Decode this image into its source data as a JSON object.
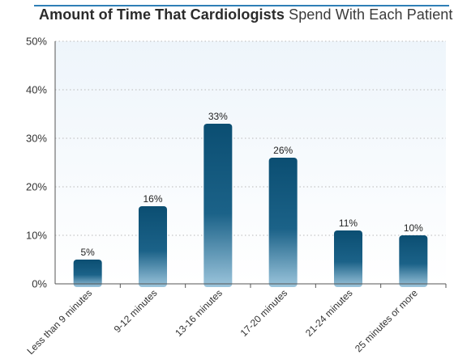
{
  "title_bold": "Amount of Time That Cardiologists",
  "title_normal": "Spend With Each Patient",
  "colors": {
    "bar_dark": "#0b4e72",
    "bar_mid": "#1b6288",
    "bar_light": "#9cc5dc",
    "plot_bg_top": "#eef5fb",
    "plot_bg_bottom": "#ffffff",
    "gridline": "#b9b9b9",
    "accent_rule": "#2f7fb6"
  },
  "chart_data": {
    "type": "bar",
    "title": "Amount of Time That Cardiologists Spend With Each Patient",
    "xlabel": "",
    "ylabel": "",
    "categories": [
      "Less than 9 minutes",
      "9-12 minutes",
      "13-16 minutes",
      "17-20 minutes",
      "21-24 minutes",
      "25 minutes or more"
    ],
    "values": [
      5,
      16,
      33,
      26,
      11,
      10
    ],
    "data_labels": [
      "5%",
      "16%",
      "33%",
      "26%",
      "11%",
      "10%"
    ],
    "ylim": [
      0,
      50
    ],
    "yticks": [
      "0%",
      "10%",
      "20%",
      "30%",
      "40%",
      "50%"
    ],
    "grid": true,
    "legend": "none"
  }
}
